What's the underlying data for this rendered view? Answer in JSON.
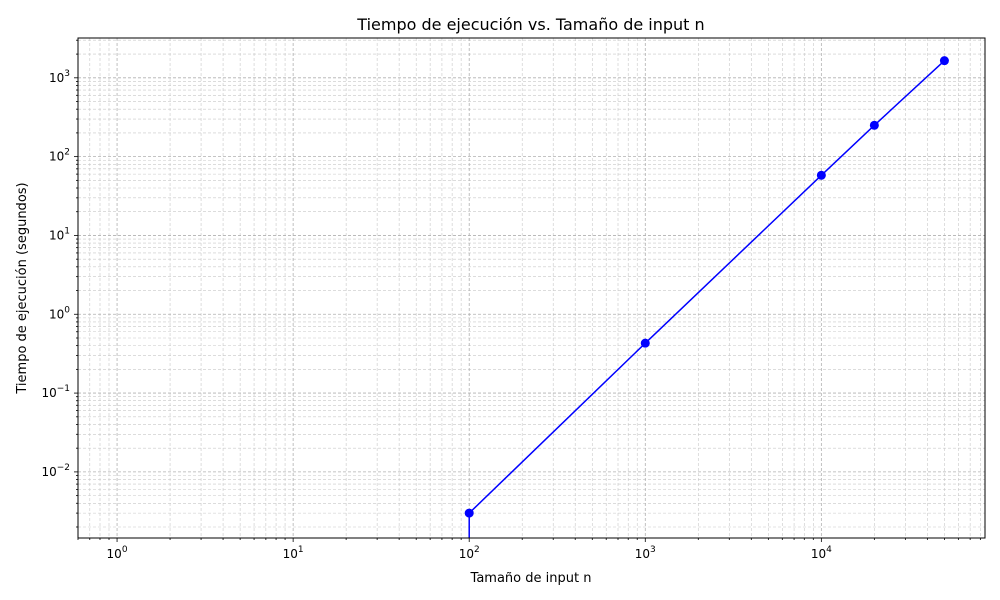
{
  "chart_data": {
    "type": "line",
    "title": "Tiempo de ejecución vs. Tamaño de input n",
    "xlabel": "Tamaño de input n",
    "ylabel": "Tiempo de ejecución (segundos)",
    "xscale": "log",
    "yscale": "log",
    "xlim": [
      0.6,
      85000
    ],
    "ylim": [
      0.00145,
      3200
    ],
    "grid": true,
    "x_ticks": [
      {
        "base": "10",
        "exp": "0",
        "value": 1
      },
      {
        "base": "10",
        "exp": "1",
        "value": 10
      },
      {
        "base": "10",
        "exp": "2",
        "value": 100
      },
      {
        "base": "10",
        "exp": "3",
        "value": 1000
      },
      {
        "base": "10",
        "exp": "4",
        "value": 10000
      }
    ],
    "y_ticks": [
      {
        "base": "10",
        "exp": "−2",
        "value": 0.01
      },
      {
        "base": "10",
        "exp": "−1",
        "value": 0.1
      },
      {
        "base": "10",
        "exp": "0",
        "value": 1
      },
      {
        "base": "10",
        "exp": "1",
        "value": 10
      },
      {
        "base": "10",
        "exp": "2",
        "value": 100
      },
      {
        "base": "10",
        "exp": "3",
        "value": 1000
      }
    ],
    "series": [
      {
        "color": "#0000ff",
        "marker": "circle",
        "points": [
          {
            "x": 100,
            "y": 0.003
          },
          {
            "x": 1000,
            "y": 0.43
          },
          {
            "x": 10000,
            "y": 58
          },
          {
            "x": 20000,
            "y": 250
          },
          {
            "x": 50000,
            "y": 1650
          }
        ]
      }
    ]
  }
}
